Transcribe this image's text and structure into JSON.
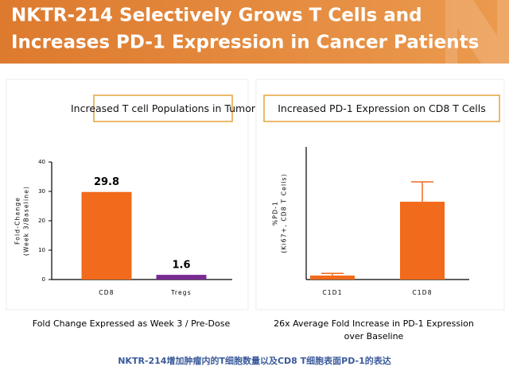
{
  "header": {
    "title": [
      "NKTR-214 Selectively Grows T Cells and",
      "Increases PD-1 Expression in Cancer Patients"
    ]
  },
  "chart_data": [
    {
      "type": "bar",
      "title": "Increased T cell Populations in Tumor",
      "categories": [
        "CD8",
        "Tregs"
      ],
      "values": [
        29.8,
        1.6
      ],
      "colors": [
        "#f26a1b",
        "#7a2b93"
      ],
      "show_values": true,
      "ylim": [
        0,
        40
      ],
      "yticks": [
        0,
        10,
        20,
        30,
        40
      ],
      "y_label": [
        "Fold-Change",
        "(Week 3/Baseline)"
      ],
      "caption": [
        "Fold Change Expressed as Week 3 / Pre-Dose"
      ]
    },
    {
      "type": "bar",
      "title": "Increased PD-1 Expression on CD8 T Cells",
      "categories": [
        "C1D1",
        "C1D8"
      ],
      "values": [
        0.18,
        3.52
      ],
      "errors": [
        0.1,
        0.9
      ],
      "colors": [
        "#f26a1b",
        "#f26a1b"
      ],
      "show_values": false,
      "ylim": [
        0,
        6
      ],
      "y_label": [
        "%PD-1",
        "(Ki67+, CD8 T Cells)"
      ],
      "caption": [
        "26x Average Fold Increase in PD-1 Expression",
        "over Baseline"
      ]
    }
  ],
  "footer": "NKTR-214增加肿瘤内的T细胞数量以及CD8 T细胞表面PD-1的表达"
}
